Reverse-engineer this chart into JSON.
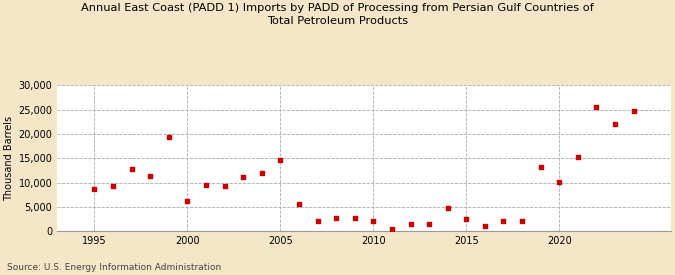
{
  "title": "Annual East Coast (PADD 1) Imports by PADD of Processing from Persian Gulf Countries of\nTotal Petroleum Products",
  "ylabel": "Thousand Barrels",
  "source": "Source: U.S. Energy Information Administration",
  "background_color": "#f5e6c8",
  "plot_background_color": "#ffffff",
  "marker_color": "#cc0000",
  "years": [
    1995,
    1996,
    1997,
    1998,
    1999,
    2000,
    2001,
    2002,
    2003,
    2004,
    2005,
    2006,
    2007,
    2008,
    2009,
    2010,
    2011,
    2012,
    2013,
    2014,
    2015,
    2016,
    2017,
    2018,
    2019,
    2020,
    2021,
    2022,
    2023,
    2024
  ],
  "values": [
    8700,
    9300,
    12700,
    11400,
    19300,
    6200,
    9400,
    9200,
    11200,
    12000,
    14600,
    5500,
    2000,
    2700,
    2700,
    2200,
    500,
    1500,
    1400,
    4700,
    2500,
    1100,
    2100,
    2100,
    13100,
    10200,
    15300,
    25600,
    22100,
    24600
  ],
  "xlim": [
    1993,
    2026
  ],
  "ylim": [
    0,
    30000
  ],
  "yticks": [
    0,
    5000,
    10000,
    15000,
    20000,
    25000,
    30000
  ],
  "xticks": [
    1995,
    2000,
    2005,
    2010,
    2015,
    2020
  ]
}
